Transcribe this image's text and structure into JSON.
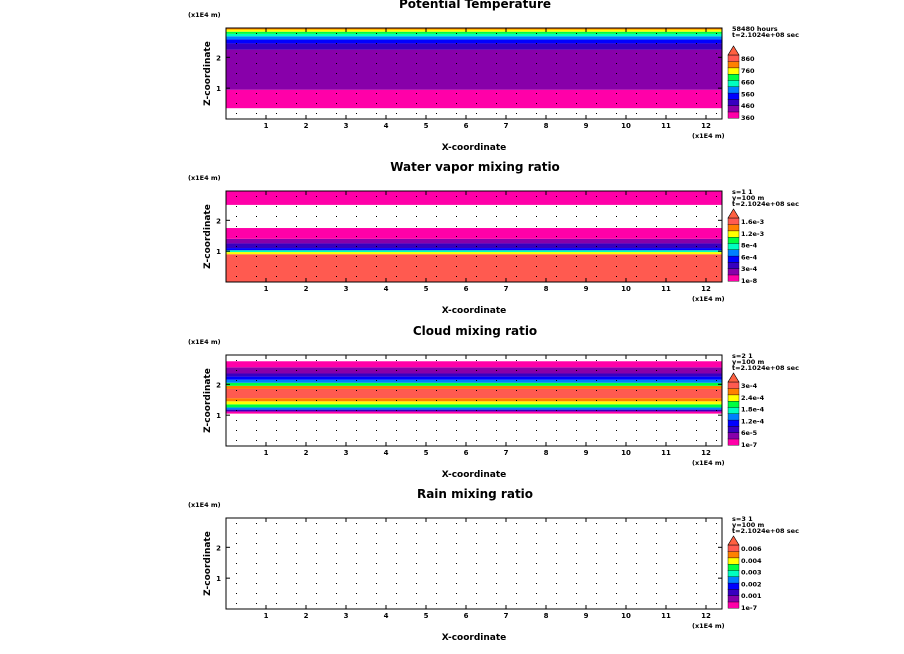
{
  "chart_data": [
    {
      "type": "heatmap",
      "title": "Potential Temperature",
      "xlabel": "X-coordinate",
      "ylabel": "Z-coordinate",
      "x_unit": "(x1E4 m)",
      "z_unit": "(x1E4 m)",
      "xlim": [
        0,
        12.4
      ],
      "zlim": [
        0,
        2.95
      ],
      "xticks": [
        "1",
        "2",
        "3",
        "4",
        "5",
        "6",
        "7",
        "8",
        "9",
        "10",
        "11",
        "12"
      ],
      "zticks": [
        "1",
        "2"
      ],
      "info": [
        "58480 hours",
        "t=2.1024e+08 sec"
      ],
      "legend_labels": [
        "860",
        "760",
        "660",
        "560",
        "460",
        "360"
      ],
      "palette": [
        "#ff00a8",
        "#8800aa",
        "#3700c0",
        "#0000ff",
        "#0080ff",
        "#00ffc0",
        "#00ff40",
        "#ffff00",
        "#ff8000",
        "#ff5a50"
      ],
      "bands": [
        {
          "z0": 0.0,
          "z1": 0.35,
          "color": "#ffffff"
        },
        {
          "z0": 0.35,
          "z1": 0.95,
          "color": "#ff00a8"
        },
        {
          "z0": 0.95,
          "z1": 2.25,
          "color": "#8800aa"
        },
        {
          "z0": 2.25,
          "z1": 2.45,
          "color": "#3700c0"
        },
        {
          "z0": 2.45,
          "z1": 2.58,
          "color": "#0000ff"
        },
        {
          "z0": 2.58,
          "z1": 2.68,
          "color": "#0080ff"
        },
        {
          "z0": 2.68,
          "z1": 2.76,
          "color": "#00ffc0"
        },
        {
          "z0": 2.76,
          "z1": 2.83,
          "color": "#00ff40"
        },
        {
          "z0": 2.83,
          "z1": 2.9,
          "color": "#ffff00"
        },
        {
          "z0": 2.9,
          "z1": 2.95,
          "color": "#ff8000"
        }
      ]
    },
    {
      "type": "heatmap",
      "title": "Water vapor mixing ratio",
      "xlabel": "X-coordinate",
      "ylabel": "Z-coordinate",
      "x_unit": "(x1E4 m)",
      "z_unit": "(x1E4 m)",
      "xlim": [
        0,
        12.4
      ],
      "zlim": [
        0,
        2.95
      ],
      "xticks": [
        "1",
        "2",
        "3",
        "4",
        "5",
        "6",
        "7",
        "8",
        "9",
        "10",
        "11",
        "12"
      ],
      "zticks": [
        "1",
        "2"
      ],
      "info": [
        "s=1 1",
        "y=100 m",
        "t=2.1024e+08 sec"
      ],
      "legend_labels": [
        "1.6e-3",
        "1.2e-3",
        "8e-4",
        "6e-4",
        "3e-4",
        "1e-8"
      ],
      "palette": [
        "#ff00a8",
        "#8800aa",
        "#3700c0",
        "#0000ff",
        "#0080ff",
        "#00ffc0",
        "#00ff40",
        "#ffff00",
        "#ff8000",
        "#ff5a50"
      ],
      "bands": [
        {
          "z0": 0.0,
          "z1": 0.9,
          "color": "#ff5a50"
        },
        {
          "z0": 0.9,
          "z1": 0.97,
          "color": "#ffff00"
        },
        {
          "z0": 0.97,
          "z1": 1.03,
          "color": "#00ffc0"
        },
        {
          "z0": 1.03,
          "z1": 1.1,
          "color": "#0000ff"
        },
        {
          "z0": 1.1,
          "z1": 1.25,
          "color": "#3700c0"
        },
        {
          "z0": 1.25,
          "z1": 1.4,
          "color": "#8800aa"
        },
        {
          "z0": 1.4,
          "z1": 1.75,
          "color": "#ff00a8"
        },
        {
          "z0": 1.75,
          "z1": 2.5,
          "color": "#ffffff"
        },
        {
          "z0": 2.5,
          "z1": 2.95,
          "color": "#ff00a8"
        }
      ]
    },
    {
      "type": "heatmap",
      "title": "Cloud mixing ratio",
      "xlabel": "X-coordinate",
      "ylabel": "Z-coordinate",
      "x_unit": "(x1E4 m)",
      "z_unit": "(x1E4 m)",
      "xlim": [
        0,
        12.4
      ],
      "zlim": [
        0,
        2.95
      ],
      "xticks": [
        "1",
        "2",
        "3",
        "4",
        "5",
        "6",
        "7",
        "8",
        "9",
        "10",
        "11",
        "12"
      ],
      "zticks": [
        "1",
        "2"
      ],
      "info": [
        "s=2 1",
        "y=100 m",
        "t=2.1024e+08 sec"
      ],
      "legend_labels": [
        "3e-4",
        "2.4e-4",
        "1.8e-4",
        "1.2e-4",
        "6e-5",
        "1e-7"
      ],
      "palette": [
        "#ff00a8",
        "#8800aa",
        "#3700c0",
        "#0000ff",
        "#0080ff",
        "#00ffc0",
        "#00ff40",
        "#ffff00",
        "#ff8000",
        "#ff5a50"
      ],
      "bands": [
        {
          "z0": 0.0,
          "z1": 1.05,
          "color": "#ffffff"
        },
        {
          "z0": 1.05,
          "z1": 1.12,
          "color": "#ff00a8"
        },
        {
          "z0": 1.12,
          "z1": 1.18,
          "color": "#3700c0"
        },
        {
          "z0": 1.18,
          "z1": 1.25,
          "color": "#0080ff"
        },
        {
          "z0": 1.25,
          "z1": 1.35,
          "color": "#00ff40"
        },
        {
          "z0": 1.35,
          "z1": 1.45,
          "color": "#ffff00"
        },
        {
          "z0": 1.45,
          "z1": 1.55,
          "color": "#ff8000"
        },
        {
          "z0": 1.55,
          "z1": 1.85,
          "color": "#ff5a50"
        },
        {
          "z0": 1.85,
          "z1": 1.95,
          "color": "#ff8000"
        },
        {
          "z0": 1.95,
          "z1": 2.05,
          "color": "#00ff40"
        },
        {
          "z0": 2.05,
          "z1": 2.15,
          "color": "#0080ff"
        },
        {
          "z0": 2.15,
          "z1": 2.25,
          "color": "#0000ff"
        },
        {
          "z0": 2.25,
          "z1": 2.35,
          "color": "#3700c0"
        },
        {
          "z0": 2.35,
          "z1": 2.55,
          "color": "#8800aa"
        },
        {
          "z0": 2.55,
          "z1": 2.75,
          "color": "#ff00a8"
        },
        {
          "z0": 2.75,
          "z1": 2.95,
          "color": "#ffffff"
        }
      ]
    },
    {
      "type": "heatmap",
      "title": "Rain mixing ratio",
      "xlabel": "X-coordinate",
      "ylabel": "Z-coordinate",
      "x_unit": "(x1E4 m)",
      "z_unit": "(x1E4 m)",
      "xlim": [
        0,
        12.4
      ],
      "zlim": [
        0,
        2.95
      ],
      "xticks": [
        "1",
        "2",
        "3",
        "4",
        "5",
        "6",
        "7",
        "8",
        "9",
        "10",
        "11",
        "12"
      ],
      "zticks": [
        "1",
        "2"
      ],
      "info": [
        "s=3 1",
        "y=100 m",
        "t=2.1024e+08 sec"
      ],
      "legend_labels": [
        "0.006",
        "0.004",
        "0.003",
        "0.002",
        "0.001",
        "1e-7"
      ],
      "palette": [
        "#ff00a8",
        "#8800aa",
        "#3700c0",
        "#0000ff",
        "#0080ff",
        "#00ffc0",
        "#00ff40",
        "#ffff00",
        "#ff8000",
        "#ff5a50"
      ],
      "bands": []
    }
  ]
}
